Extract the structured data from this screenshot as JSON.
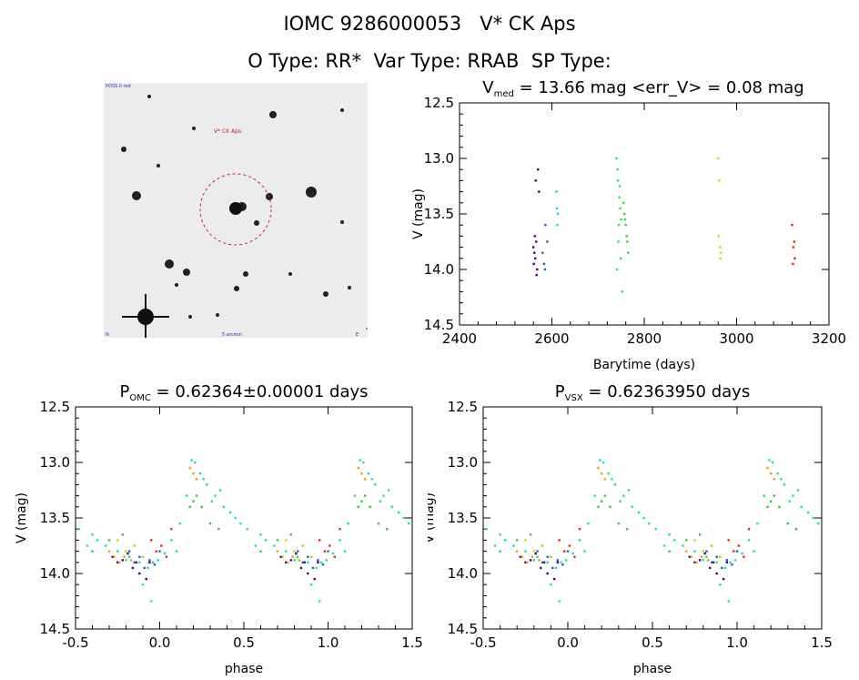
{
  "header": {
    "line1": "IOMC 9286000053   V* CK Aps",
    "line2": "O Type: RR*  Var Type: RRAB  SP Type:"
  },
  "finder": {
    "label_target": "V* CK Aps",
    "label_top_left": "POSS II red",
    "label_bottom_center": "5 arcmin",
    "label_bottom_left": "N",
    "label_bottom_right": "E"
  },
  "chart_data": [
    {
      "type": "scatter",
      "id": "lightcurve",
      "title_main": "V",
      "title_sub": "med",
      "title_rest": " = 13.66 mag <err_V> = 0.08 mag",
      "xlabel": "Barytime (days)",
      "ylabel": "V (mag)",
      "xlim": [
        2400,
        3200
      ],
      "ylim": [
        14.5,
        12.5
      ],
      "xticks": [
        "2400",
        "2600",
        "2800",
        "3000",
        "3200"
      ],
      "yticks": [
        "12.5",
        "13.0",
        "13.5",
        "14.0",
        "14.5"
      ],
      "xtick_values": [
        2400,
        2600,
        2800,
        3000,
        3200
      ],
      "ytick_values": [
        12.5,
        13.0,
        13.5,
        14.0,
        14.5
      ],
      "series": [
        {
          "name": "s1",
          "color": "#4b0082",
          "x": [
            2560,
            2562,
            2564,
            2566,
            2568,
            2570,
            2572,
            2561,
            2563,
            2565,
            2567
          ],
          "y": [
            13.8,
            13.85,
            13.9,
            13.75,
            14.0,
            13.1,
            13.3,
            13.95,
            13.7,
            13.2,
            14.05
          ]
        },
        {
          "name": "s2",
          "color": "#1e64c8",
          "x": [
            2580,
            2583,
            2586,
            2590,
            2585
          ],
          "y": [
            13.85,
            13.95,
            13.6,
            13.75,
            14.0
          ]
        },
        {
          "name": "s3",
          "color": "#20d0e0",
          "x": [
            2610,
            2612,
            2611,
            2613
          ],
          "y": [
            13.3,
            13.6,
            13.45,
            13.5
          ]
        },
        {
          "name": "s4",
          "color": "#20e090",
          "x": [
            2740,
            2743,
            2746,
            2749,
            2752,
            2745,
            2742,
            2748,
            2744,
            2747,
            2750,
            2741
          ],
          "y": [
            13.0,
            13.2,
            13.35,
            13.9,
            14.2,
            13.6,
            13.1,
            13.45,
            13.75,
            13.25,
            13.55,
            14.0
          ]
        },
        {
          "name": "s5",
          "color": "#40d040",
          "x": [
            2755,
            2758,
            2762,
            2765,
            2760,
            2757,
            2763
          ],
          "y": [
            13.4,
            13.55,
            13.7,
            13.85,
            13.6,
            13.5,
            13.75
          ]
        },
        {
          "name": "s6",
          "color": "#c8d820",
          "x": [
            2960,
            2962,
            2964,
            2966,
            2965,
            2961
          ],
          "y": [
            13.0,
            13.2,
            13.8,
            13.85,
            13.9,
            13.7
          ]
        },
        {
          "name": "s7",
          "color": "#e03010",
          "x": [
            3120,
            3123,
            3126,
            3125,
            3122
          ],
          "y": [
            13.6,
            13.8,
            13.9,
            13.75,
            13.95
          ]
        }
      ]
    },
    {
      "type": "scatter",
      "id": "phase_omc",
      "title_main": "P",
      "title_sub": "OMC",
      "title_rest": " = 0.62364±0.00001 days",
      "xlabel": "phase",
      "ylabel": "V (mag)",
      "xlim": [
        -0.5,
        1.5
      ],
      "ylim": [
        14.5,
        12.5
      ],
      "xticks": [
        "-0.5",
        "0.0",
        "0.5",
        "1.0",
        "1.5"
      ],
      "yticks": [
        "12.5",
        "13.0",
        "13.5",
        "14.0",
        "14.5"
      ],
      "xtick_values": [
        -0.5,
        0.0,
        0.5,
        1.0,
        1.5
      ],
      "ytick_values": [
        12.5,
        13.0,
        13.5,
        14.0,
        14.5
      ],
      "series": [
        {
          "name": "cycle",
          "color": "#20e0a0",
          "phase": [
            0.19,
            0.21,
            0.24,
            0.28,
            0.33,
            0.38,
            0.45,
            0.52,
            0.6,
            0.68,
            0.75,
            0.82,
            0.88,
            0.93,
            0.96,
            0.99,
            1.03,
            1.07,
            1.12,
            1.16,
            0.57,
            0.63,
            0.72,
            0.8,
            0.86,
            0.9,
            0.95,
            0.42,
            0.48,
            0.36,
            0.26,
            0.31,
            1.1
          ],
          "mag": [
            12.98,
            13.0,
            13.1,
            13.2,
            13.3,
            13.4,
            13.5,
            13.6,
            13.65,
            13.75,
            13.8,
            13.85,
            13.9,
            13.95,
            13.9,
            13.88,
            13.82,
            13.7,
            13.55,
            13.3,
            13.75,
            13.7,
            13.85,
            13.88,
            13.9,
            14.1,
            14.25,
            13.45,
            13.55,
            13.25,
            13.15,
            13.35,
            13.8
          ]
        },
        {
          "name": "dim_branch",
          "color": "#40c040",
          "phase": [
            0.18,
            0.2,
            0.22,
            0.25,
            0.3,
            0.35,
            0.6,
            0.7,
            0.78,
            0.85
          ],
          "mag": [
            13.4,
            13.35,
            13.3,
            13.4,
            13.55,
            13.6,
            13.8,
            13.7,
            13.65,
            13.75
          ]
        },
        {
          "name": "purple",
          "color": "#4b0082",
          "phase": [
            0.72,
            0.75,
            0.78,
            0.81,
            0.84,
            0.86,
            0.88,
            0.9,
            0.92,
            0.94
          ],
          "mag": [
            13.85,
            13.9,
            13.88,
            13.82,
            13.95,
            13.9,
            14.0,
            13.85,
            14.05,
            13.9
          ]
        },
        {
          "name": "blue",
          "color": "#1e64c8",
          "phase": [
            0.82,
            0.85,
            0.88,
            0.91,
            0.94,
            0.97,
            1.0
          ],
          "mag": [
            13.8,
            13.9,
            13.85,
            13.95,
            13.88,
            13.92,
            13.8
          ]
        },
        {
          "name": "orange",
          "color": "#f0a000",
          "phase": [
            0.7,
            0.73,
            0.76,
            0.79,
            0.83,
            1.18,
            1.2,
            1.22
          ],
          "mag": [
            13.8,
            13.85,
            13.9,
            13.85,
            13.88,
            13.05,
            13.1,
            13.15
          ]
        },
        {
          "name": "yellow",
          "color": "#c8d820",
          "phase": [
            0.75,
            0.8,
            0.85,
            0.9
          ],
          "mag": [
            13.7,
            13.8,
            13.75,
            13.85
          ]
        },
        {
          "name": "red",
          "color": "#e03010",
          "phase": [
            0.95,
            0.98,
            1.01,
            1.04,
            1.07
          ],
          "mag": [
            13.7,
            13.8,
            13.75,
            13.85,
            13.6
          ]
        }
      ]
    },
    {
      "type": "scatter",
      "id": "phase_vsx",
      "title_main": "P",
      "title_sub": "VSX",
      "title_rest": " = 0.62363950 days",
      "xlabel": "phase",
      "ylabel": "V (mag)",
      "xlim": [
        -0.5,
        1.5
      ],
      "ylim": [
        14.5,
        12.5
      ],
      "xticks": [
        "-0.5",
        "0.0",
        "0.5",
        "1.0",
        "1.5"
      ],
      "yticks": [
        "12.5",
        "13.0",
        "13.5",
        "14.0",
        "14.5"
      ],
      "xtick_values": [
        -0.5,
        0.0,
        0.5,
        1.0,
        1.5
      ],
      "ytick_values": [
        12.5,
        13.0,
        13.5,
        14.0,
        14.5
      ],
      "series": [
        {
          "name": "cycle",
          "color": "#20e0a0",
          "phase": [
            0.19,
            0.21,
            0.24,
            0.28,
            0.33,
            0.38,
            0.45,
            0.52,
            0.6,
            0.68,
            0.75,
            0.82,
            0.88,
            0.93,
            0.96,
            0.99,
            1.03,
            1.07,
            1.12,
            1.16,
            0.57,
            0.63,
            0.72,
            0.8,
            0.86,
            0.9,
            0.95,
            0.42,
            0.48,
            0.36,
            0.26,
            0.31,
            1.1
          ],
          "mag": [
            12.98,
            13.0,
            13.1,
            13.2,
            13.3,
            13.4,
            13.5,
            13.6,
            13.65,
            13.75,
            13.8,
            13.85,
            13.9,
            13.95,
            13.9,
            13.88,
            13.82,
            13.7,
            13.55,
            13.3,
            13.75,
            13.7,
            13.85,
            13.88,
            13.9,
            14.1,
            14.25,
            13.45,
            13.55,
            13.25,
            13.15,
            13.35,
            13.8
          ]
        },
        {
          "name": "dim_branch",
          "color": "#40c040",
          "phase": [
            0.18,
            0.2,
            0.22,
            0.25,
            0.3,
            0.35,
            0.6,
            0.7,
            0.78,
            0.85
          ],
          "mag": [
            13.4,
            13.35,
            13.3,
            13.4,
            13.55,
            13.6,
            13.8,
            13.7,
            13.65,
            13.75
          ]
        },
        {
          "name": "purple",
          "color": "#4b0082",
          "phase": [
            0.72,
            0.75,
            0.78,
            0.81,
            0.84,
            0.86,
            0.88,
            0.9,
            0.92,
            0.94
          ],
          "mag": [
            13.85,
            13.9,
            13.88,
            13.82,
            13.95,
            13.9,
            14.0,
            13.85,
            14.05,
            13.9
          ]
        },
        {
          "name": "blue",
          "color": "#1e64c8",
          "phase": [
            0.82,
            0.85,
            0.88,
            0.91,
            0.94,
            0.97,
            1.0
          ],
          "mag": [
            13.8,
            13.9,
            13.85,
            13.95,
            13.88,
            13.92,
            13.8
          ]
        },
        {
          "name": "orange",
          "color": "#f0a000",
          "phase": [
            0.7,
            0.73,
            0.76,
            0.79,
            0.83,
            1.18,
            1.2,
            1.22
          ],
          "mag": [
            13.8,
            13.85,
            13.9,
            13.85,
            13.88,
            13.05,
            13.1,
            13.15
          ]
        },
        {
          "name": "yellow",
          "color": "#c8d820",
          "phase": [
            0.75,
            0.8,
            0.85,
            0.9
          ],
          "mag": [
            13.7,
            13.8,
            13.75,
            13.85
          ]
        },
        {
          "name": "red",
          "color": "#e03010",
          "phase": [
            0.95,
            0.98,
            1.01,
            1.04,
            1.07
          ],
          "mag": [
            13.7,
            13.8,
            13.75,
            13.85,
            13.6
          ]
        }
      ]
    }
  ]
}
